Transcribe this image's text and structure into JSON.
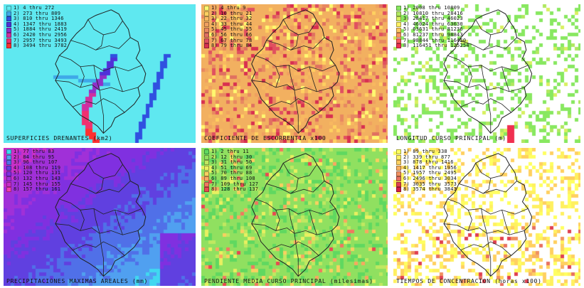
{
  "panels": [
    {
      "id": "superficies",
      "title": "SUPERFICIES DRENANTES (km2)",
      "background": "#5fe8f0",
      "legend": [
        {
          "label": "1) 4 thru 272",
          "color": "#5fe8f0"
        },
        {
          "label": "2) 273 thru 809",
          "color": "#3fa8e8"
        },
        {
          "label": "3) 810 thru 1346",
          "color": "#3050e0"
        },
        {
          "label": "4) 1347 thru 1883",
          "color": "#5030d8"
        },
        {
          "label": "5) 1884 thru 2419",
          "color": "#9030c8"
        },
        {
          "label": "6) 2420 thru 2956",
          "color": "#d030a0"
        },
        {
          "label": "7) 2957 thru 3493",
          "color": "#f03070"
        },
        {
          "label": "8) 3494 thru 3782",
          "color": "#ff3030"
        }
      ]
    },
    {
      "id": "escorrentia",
      "title": "COEFICIENTE DE ESCORRENTIA x100",
      "background": "#f2b060",
      "legend": [
        {
          "label": "1) 4 thru 9",
          "color": "#fff870"
        },
        {
          "label": "2) 10 thru 21",
          "color": "#ffd060"
        },
        {
          "label": "3) 22 thru 32",
          "color": "#f8b860"
        },
        {
          "label": "4) 33 thru 44",
          "color": "#f0a060"
        },
        {
          "label": "5) 45 thru 55",
          "color": "#e88860"
        },
        {
          "label": "6) 56 thru 66",
          "color": "#e07060"
        },
        {
          "label": "7) 67 thru 78",
          "color": "#e05060"
        },
        {
          "label": "8) 79 thru 84",
          "color": "#d83050"
        }
      ]
    },
    {
      "id": "longitud",
      "title": "LONGITUD CURSO PRINCIPAL (m)",
      "background": "#ffffff",
      "legend": [
        {
          "label": "1) 2008 thru 10809",
          "color": "#88e860"
        },
        {
          "label": "2) 10810 thru 28416",
          "color": "#b0e860"
        },
        {
          "label": "3) 28417 thru 46023",
          "color": "#d8f060"
        },
        {
          "label": "4) 46024 thru 63630",
          "color": "#fff060"
        },
        {
          "label": "5) 63631 thru 81236",
          "color": "#ffc860"
        },
        {
          "label": "6) 81237 thru 98843",
          "color": "#ff9860"
        },
        {
          "label": "7) 98844 thru 116450",
          "color": "#ff6060"
        },
        {
          "label": "8) 116451 thru 125254",
          "color": "#f03050"
        }
      ]
    },
    {
      "id": "precipitaciones",
      "title": "PRECIPITACIONES MAXIMAS AREALES (mm)",
      "background": "#40d8f0",
      "legend": [
        {
          "label": "1) 77 thru 83",
          "color": "#40d8f0"
        },
        {
          "label": "2) 84 thru 95",
          "color": "#50a0f0"
        },
        {
          "label": "3) 96 thru 107",
          "color": "#5070e8"
        },
        {
          "label": "4) 108 thru 119",
          "color": "#6040e0"
        },
        {
          "label": "5) 120 thru 131",
          "color": "#8030e0"
        },
        {
          "label": "6) 132 thru 143",
          "color": "#a030d8"
        },
        {
          "label": "7) 145 thru 155",
          "color": "#c830c8"
        },
        {
          "label": "8) 157 thru 161",
          "color": "#f040b0"
        }
      ]
    },
    {
      "id": "pendiente",
      "title": "PENDIENTE MEDIA CURSO PRINCIPAL (milesimas)",
      "background": "#90e060",
      "legend": [
        {
          "label": "1) 2 thru 11",
          "color": "#60d860"
        },
        {
          "label": "2) 12 thru 30",
          "color": "#90e060"
        },
        {
          "label": "3) 31 thru 50",
          "color": "#c0e860"
        },
        {
          "label": "4) 51 thru 69",
          "color": "#e8f060"
        },
        {
          "label": "5) 70 thru 88",
          "color": "#f8d060"
        },
        {
          "label": "6) 89 thru 108",
          "color": "#f8a860"
        },
        {
          "label": "7) 109 thru 127",
          "color": "#f07860"
        },
        {
          "label": "8) 128 thru 137",
          "color": "#e84850"
        }
      ]
    },
    {
      "id": "tiempos",
      "title": "TIEMPOS DE CONCENTRACION (horas x100)",
      "background": "#ffffff",
      "legend": [
        {
          "label": "1) 89 thru 338",
          "color": "#ffff60"
        },
        {
          "label": "2) 339 thru 877",
          "color": "#fff060"
        },
        {
          "label": "3) 878 thru 1416",
          "color": "#ffd060"
        },
        {
          "label": "4) 1417 thru 1956",
          "color": "#f8b060"
        },
        {
          "label": "5) 1957 thru 2495",
          "color": "#f09060"
        },
        {
          "label": "6) 2496 thru 3034",
          "color": "#e87060"
        },
        {
          "label": "7) 3035 thru 3573",
          "color": "#e04050"
        },
        {
          "label": "8) 3574 thru 3843",
          "color": "#d82040"
        }
      ]
    }
  ]
}
